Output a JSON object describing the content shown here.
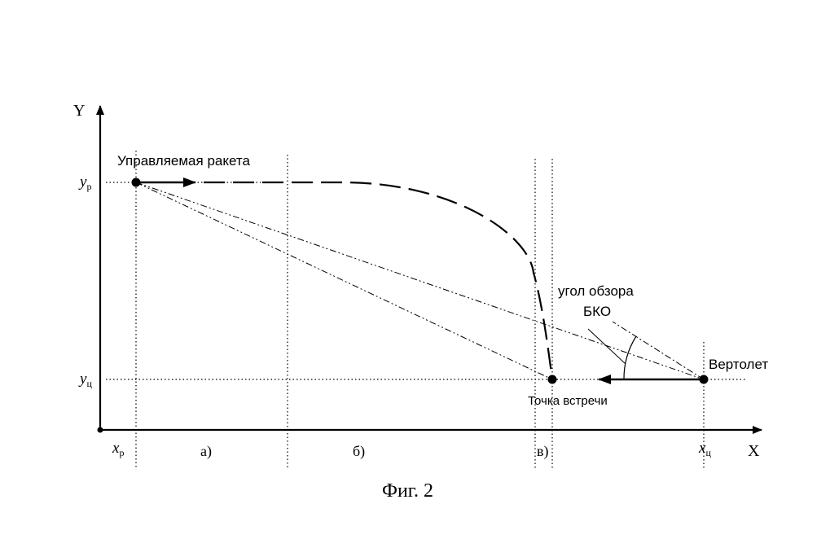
{
  "axes": {
    "x_label": "X",
    "y_label": "Y",
    "y_rocket": "y",
    "y_rocket_sub": "р",
    "y_target": "y",
    "y_target_sub": "ц",
    "x_rocket": "x",
    "x_rocket_sub": "р",
    "x_target": "x",
    "x_target_sub": "ц"
  },
  "labels": {
    "rocket": "Управляемая ракета",
    "helicopter": "Вертолет",
    "meeting_point": "Точка встречи",
    "view_angle_line1": "угол обзора",
    "view_angle_line2": "БКО"
  },
  "zones": [
    "а)",
    "б)",
    "в)"
  ],
  "caption": "Фиг. 2"
}
